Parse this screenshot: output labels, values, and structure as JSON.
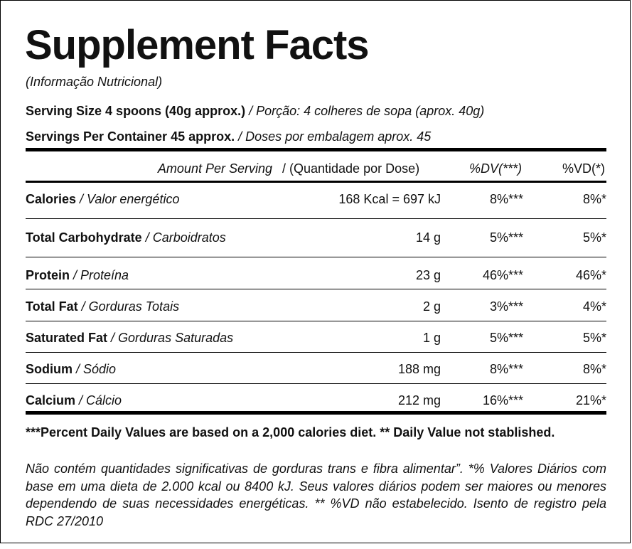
{
  "title": "Supplement Facts",
  "subtitle": "(Informação Nutricional)",
  "serving_size": {
    "label": "Serving Size 4 spoons (40g approx.)",
    "translation": " / Porção: 4 colheres de sopa (aprox. 40g)"
  },
  "servings_per_container": {
    "label": "Servings Per Container 45 approx.",
    "translation": " / Doses por embalagem aprox. 45"
  },
  "header": {
    "amount_per_serving": "Amount Per Serving",
    "quantity_per_dose": "/ (Quantidade por Dose)",
    "dv": "%DV(***)",
    "vd": "%VD(*)"
  },
  "rows": [
    {
      "name": "Calories",
      "translation": " / Valor energético",
      "amount": "168 Kcal = 697 kJ",
      "dv": "8%***",
      "vd": "8%*"
    },
    {
      "name": "Total Carbohydrate",
      "translation": " / Carboidratos",
      "amount": "14 g",
      "dv": "5%***",
      "vd": "5%*"
    },
    {
      "name": "Protein",
      "translation": " / Proteína",
      "amount": "23 g",
      "dv": "46%***",
      "vd": "46%*"
    },
    {
      "name": "Total Fat",
      "translation": " / Gorduras Totais",
      "amount": "2 g",
      "dv": "3%***",
      "vd": "4%*"
    },
    {
      "name": "Saturated Fat",
      "translation": " / Gorduras Saturadas",
      "amount": "1 g",
      "dv": "5%***",
      "vd": "5%*"
    },
    {
      "name": "Sodium",
      "translation": " / Sódio",
      "amount": "188 mg",
      "dv": "8%***",
      "vd": "8%*"
    },
    {
      "name": "Calcium",
      "translation": " / Cálcio",
      "amount": "212 mg",
      "dv": "16%***",
      "vd": "21%*"
    }
  ],
  "footnote_bold": "***Percent Daily Values are based on a 2,000 calories diet. ** Daily Value not stablished.",
  "footnote_italic": "Não contém quantidades significativas de gorduras trans e fibra alimentar”. *% Valores Diários com base em uma dieta de 2.000 kcal ou 8400 kJ. Seus valores diários podem ser maiores ou menores dependendo de suas necessidades energéticas. ** %VD não estabelecido. Isento de registro pela RDC 27/2010"
}
